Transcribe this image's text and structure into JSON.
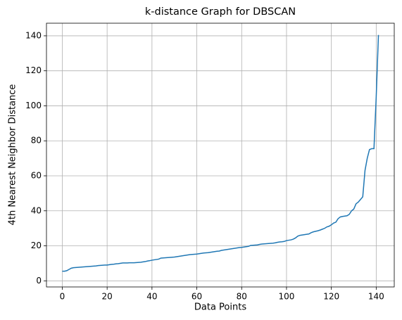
{
  "chart_data": {
    "type": "line",
    "title": "k-distance Graph for DBSCAN",
    "xlabel": "Data Points",
    "ylabel": "4th Nearest Neighbor Distance",
    "x": [
      0,
      1,
      2,
      3,
      4,
      5,
      6,
      7,
      8,
      9,
      10,
      11,
      12,
      13,
      14,
      15,
      16,
      17,
      18,
      19,
      20,
      21,
      22,
      23,
      24,
      25,
      26,
      27,
      28,
      29,
      30,
      31,
      32,
      33,
      34,
      35,
      36,
      37,
      38,
      39,
      40,
      41,
      42,
      43,
      44,
      45,
      46,
      47,
      48,
      49,
      50,
      51,
      52,
      53,
      54,
      55,
      56,
      57,
      58,
      59,
      60,
      61,
      62,
      63,
      64,
      65,
      66,
      67,
      68,
      69,
      70,
      71,
      72,
      73,
      74,
      75,
      76,
      77,
      78,
      79,
      80,
      81,
      82,
      83,
      84,
      85,
      86,
      87,
      88,
      89,
      90,
      91,
      92,
      93,
      94,
      95,
      96,
      97,
      98,
      99,
      100,
      101,
      102,
      103,
      104,
      105,
      106,
      107,
      108,
      109,
      110,
      111,
      112,
      113,
      114,
      115,
      116,
      117,
      118,
      119,
      120,
      121,
      122,
      123,
      124,
      125,
      126,
      127,
      128,
      129,
      130,
      131,
      132,
      133,
      134,
      135,
      136,
      137,
      138,
      139,
      140,
      141
    ],
    "series": [
      {
        "color": "#1f77b4",
        "values": [
          5.5,
          5.5,
          5.8,
          6.5,
          7.2,
          7.5,
          7.6,
          7.7,
          7.8,
          7.9,
          8.0,
          8.1,
          8.2,
          8.3,
          8.4,
          8.5,
          8.7,
          8.8,
          8.9,
          9.0,
          9.0,
          9.2,
          9.4,
          9.5,
          9.7,
          9.8,
          10.0,
          10.2,
          10.2,
          10.2,
          10.3,
          10.3,
          10.3,
          10.4,
          10.5,
          10.6,
          10.8,
          11.0,
          11.3,
          11.5,
          11.8,
          12.0,
          12.2,
          12.4,
          13.0,
          13.1,
          13.2,
          13.3,
          13.4,
          13.5,
          13.6,
          13.8,
          14.0,
          14.2,
          14.4,
          14.6,
          14.8,
          15.0,
          15.1,
          15.2,
          15.3,
          15.5,
          15.7,
          15.9,
          16.0,
          16.1,
          16.3,
          16.5,
          16.7,
          16.9,
          17.0,
          17.4,
          17.6,
          17.8,
          18.0,
          18.2,
          18.4,
          18.6,
          18.8,
          19.0,
          19.1,
          19.3,
          19.5,
          19.7,
          20.2,
          20.3,
          20.4,
          20.5,
          20.8,
          21.0,
          21.1,
          21.2,
          21.3,
          21.4,
          21.5,
          21.7,
          22.0,
          22.2,
          22.3,
          22.5,
          23.0,
          23.2,
          23.4,
          23.8,
          24.5,
          25.5,
          26.0,
          26.2,
          26.4,
          26.6,
          26.8,
          27.5,
          28.0,
          28.3,
          28.6,
          29.0,
          29.5,
          30.0,
          30.8,
          31.2,
          32.0,
          33.0,
          33.5,
          35.5,
          36.5,
          36.8,
          37.0,
          37.2,
          38.0,
          40.0,
          41.0,
          44.0,
          45.0,
          46.5,
          48.0,
          63.0,
          70.0,
          75.0,
          75.5,
          75.5,
          105.0,
          140.5
        ]
      }
    ],
    "xlim": [
      -7.05,
      148.05
    ],
    "xticks": [
      0,
      20,
      40,
      60,
      80,
      100,
      120,
      140
    ],
    "ylim": [
      -3.5,
      147.2
    ],
    "yticks": [
      0,
      20,
      40,
      60,
      80,
      100,
      120,
      140
    ],
    "grid": true
  }
}
